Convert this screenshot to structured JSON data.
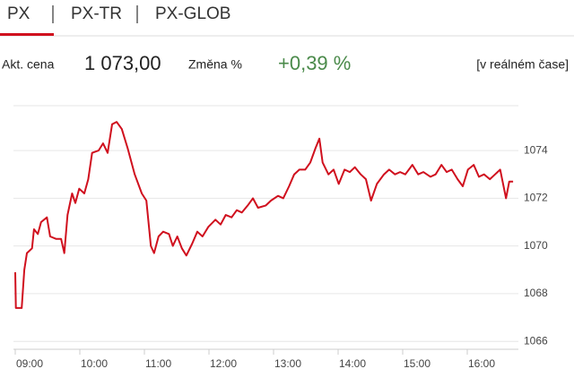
{
  "header": {
    "tabs": [
      "PX",
      "PX-TR",
      "PX-GLOB"
    ]
  },
  "quote": {
    "price_label": "Akt. cena",
    "price": "1 073,00",
    "change_label": "Změna %",
    "change": "+0,39 %",
    "realtime": "[v reálném čase]"
  },
  "chart_data": {
    "type": "line",
    "color": "#d0101e",
    "x": [
      9.0,
      9.01,
      9.1,
      9.14,
      9.18,
      9.26,
      9.29,
      9.35,
      9.4,
      9.49,
      9.54,
      9.63,
      9.71,
      9.76,
      9.81,
      9.88,
      9.93,
      9.99,
      10.07,
      10.13,
      10.19,
      10.29,
      10.36,
      10.43,
      10.5,
      10.57,
      10.65,
      10.74,
      10.85,
      10.96,
      11.03,
      11.1,
      11.15,
      11.22,
      11.29,
      11.38,
      11.44,
      11.51,
      11.58,
      11.65,
      11.74,
      11.82,
      11.9,
      11.99,
      12.1,
      12.18,
      12.26,
      12.35,
      12.43,
      12.51,
      12.6,
      12.68,
      12.76,
      12.88,
      12.96,
      13.07,
      13.15,
      13.24,
      13.32,
      13.4,
      13.49,
      13.57,
      13.65,
      13.71,
      13.76,
      13.85,
      13.93,
      14.01,
      14.1,
      14.18,
      14.26,
      14.35,
      14.43,
      14.51,
      14.6,
      14.71,
      14.79,
      14.88,
      14.96,
      15.04,
      15.15,
      15.24,
      15.32,
      15.43,
      15.51,
      15.6,
      15.68,
      15.76,
      15.85,
      15.93,
      16.01,
      16.1,
      16.18,
      16.26,
      16.35,
      16.43,
      16.51,
      16.6,
      16.65,
      16.71
    ],
    "values": [
      1068.9,
      1067.4,
      1067.4,
      1069.0,
      1069.7,
      1069.9,
      1070.7,
      1070.5,
      1071.0,
      1071.2,
      1070.4,
      1070.3,
      1070.3,
      1069.7,
      1071.3,
      1072.2,
      1071.8,
      1072.4,
      1072.2,
      1072.8,
      1073.9,
      1074.0,
      1074.3,
      1073.9,
      1075.1,
      1075.2,
      1074.9,
      1074.1,
      1073.0,
      1072.2,
      1071.9,
      1070.0,
      1069.7,
      1070.4,
      1070.6,
      1070.5,
      1070.0,
      1070.4,
      1069.9,
      1069.6,
      1070.1,
      1070.6,
      1070.4,
      1070.8,
      1071.1,
      1070.9,
      1071.3,
      1071.2,
      1071.5,
      1071.4,
      1071.7,
      1072.0,
      1071.6,
      1071.7,
      1071.9,
      1072.1,
      1072.0,
      1072.5,
      1073.0,
      1073.2,
      1073.2,
      1073.5,
      1074.1,
      1074.5,
      1073.5,
      1073.0,
      1073.2,
      1072.6,
      1073.2,
      1073.1,
      1073.3,
      1073.0,
      1072.8,
      1071.9,
      1072.6,
      1073.0,
      1073.2,
      1073.0,
      1073.1,
      1073.0,
      1073.4,
      1073.0,
      1073.1,
      1072.9,
      1073.0,
      1073.4,
      1073.1,
      1073.2,
      1072.8,
      1072.5,
      1073.2,
      1073.4,
      1072.9,
      1073.0,
      1072.8,
      1073.0,
      1073.2,
      1072.0,
      1072.7,
      1072.7
    ],
    "xlim": [
      9,
      16.75
    ],
    "xticks": [
      {
        "value": 9,
        "label": "09:00"
      },
      {
        "value": 10,
        "label": "10:00"
      },
      {
        "value": 11,
        "label": "11:00"
      },
      {
        "value": 12,
        "label": "12:00"
      },
      {
        "value": 13,
        "label": "13:00"
      },
      {
        "value": 14,
        "label": "14:00"
      },
      {
        "value": 15,
        "label": "15:00"
      },
      {
        "value": 16,
        "label": "16:00"
      }
    ],
    "ylim": [
      1065.67,
      1075.88
    ],
    "yticks": [
      1066,
      1068,
      1070,
      1072,
      1074
    ],
    "grid": true
  }
}
